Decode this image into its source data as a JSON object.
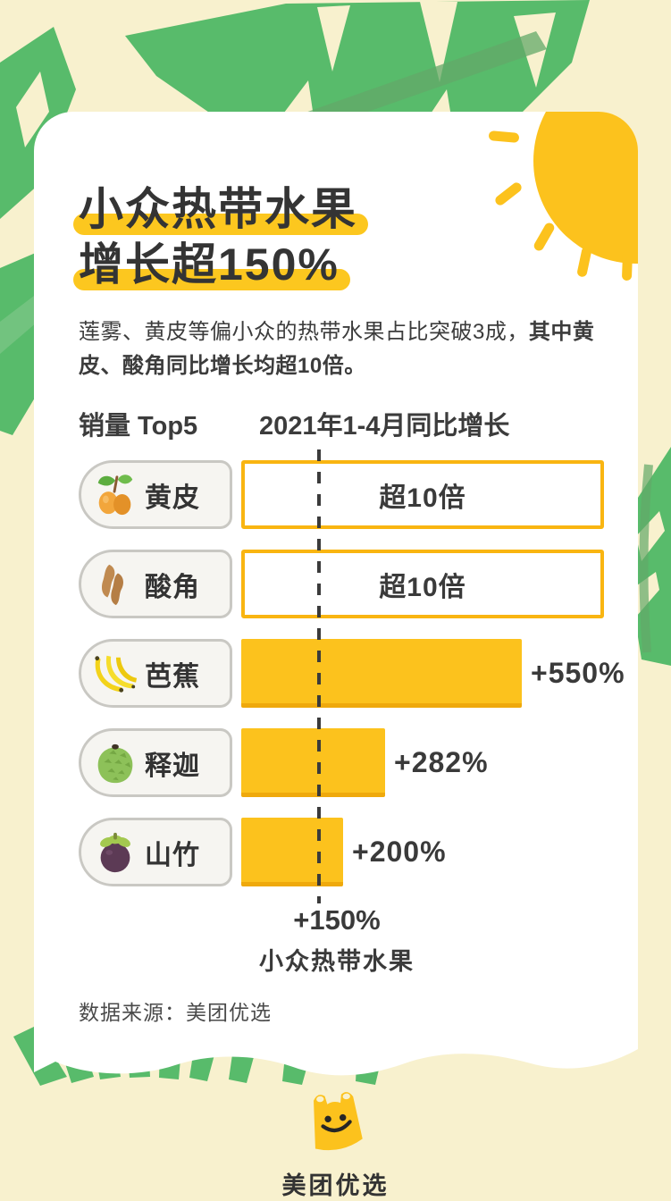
{
  "page": {
    "background_color": "#F8F1CE"
  },
  "colors": {
    "accent_yellow": "#FCC21D",
    "leaf_green": "#58BB6B",
    "text_dark": "#3B3B3B",
    "card_white": "#FFFFFF"
  },
  "card": {
    "title": {
      "line1": "小众热带水果",
      "line2": "增长超150%"
    },
    "intro": {
      "lead": "莲雾、黄皮等偏小众的热带水果占比突破3成，",
      "emphasis": "其中黄皮、酸角同比增长均超10倍。"
    },
    "source": "数据来源：美团优选"
  },
  "chart_data": {
    "type": "bar",
    "orientation": "horizontal",
    "title": "销量 Top5",
    "value_axis_label": "2021年1-4月同比增长",
    "unit": "percent year-over-year growth, Jan-Apr 2021",
    "categories": [
      "黄皮",
      "酸角",
      "芭蕉",
      "释迦",
      "山竹"
    ],
    "rows": [
      {
        "label": "黄皮",
        "icon": "wampee-icon",
        "display_value": "超10倍",
        "growth_pct": 1000,
        "is_minimum": true,
        "bar_style": "outlined"
      },
      {
        "label": "酸角",
        "icon": "tamarind-icon",
        "display_value": "超10倍",
        "growth_pct": 1000,
        "is_minimum": true,
        "bar_style": "outlined"
      },
      {
        "label": "芭蕉",
        "icon": "banana-icon",
        "display_value": "+550%",
        "growth_pct": 550,
        "is_minimum": false,
        "bar_style": "filled"
      },
      {
        "label": "释迦",
        "icon": "sugar-apple-icon",
        "display_value": "+282%",
        "growth_pct": 282,
        "is_minimum": false,
        "bar_style": "filled"
      },
      {
        "label": "山竹",
        "icon": "mangosteen-icon",
        "display_value": "+200%",
        "growth_pct": 200,
        "is_minimum": false,
        "bar_style": "filled"
      }
    ],
    "reference_line": {
      "display_value": "+150%",
      "caption": "小众热带水果",
      "growth_pct": 150
    },
    "grid": false,
    "legend": null
  },
  "footer": {
    "brand": "美团优选",
    "logo": "meituan-youxuan-bag-logo"
  }
}
